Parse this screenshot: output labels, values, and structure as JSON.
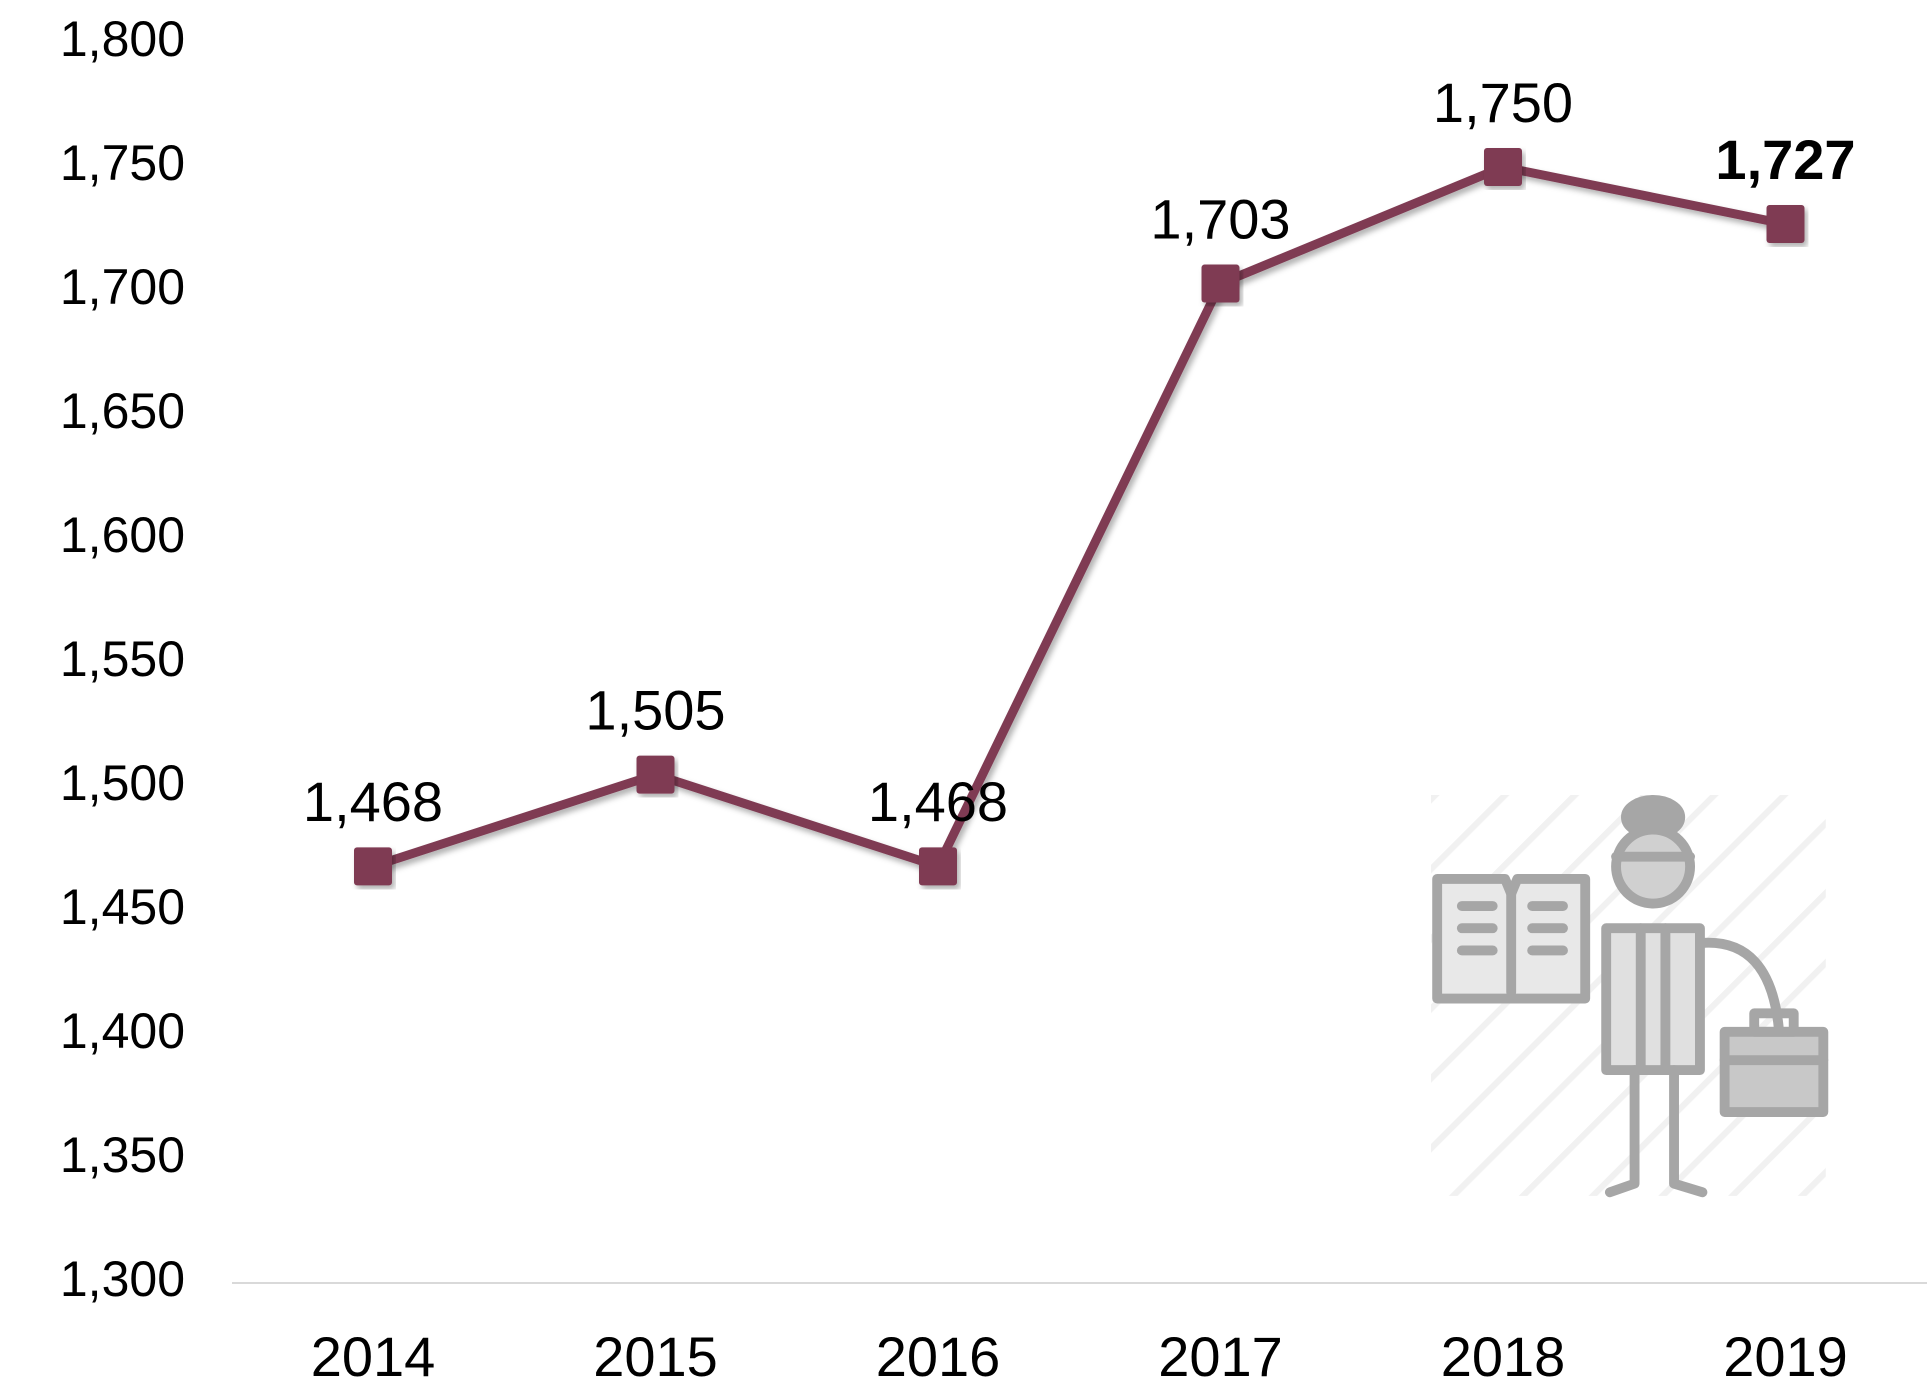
{
  "chart_data": {
    "type": "line",
    "categories": [
      "2014",
      "2015",
      "2016",
      "2017",
      "2018",
      "2019"
    ],
    "series": [
      {
        "color": "#7f3b53",
        "values": [
          1468,
          1505,
          1468,
          1703,
          1750,
          1727
        ],
        "value_labels": [
          "1,468",
          "1,505",
          "1,468",
          "1,703",
          "1,750",
          "1,727"
        ]
      }
    ],
    "ylim": [
      1300,
      1800
    ],
    "yticks": [
      {
        "value": 1300,
        "label": "1,300"
      },
      {
        "value": 1350,
        "label": "1,350"
      },
      {
        "value": 1400,
        "label": "1,400"
      },
      {
        "value": 1450,
        "label": "1,450"
      },
      {
        "value": 1500,
        "label": "1,500"
      },
      {
        "value": 1550,
        "label": "1,550"
      },
      {
        "value": 1600,
        "label": "1,600"
      },
      {
        "value": 1650,
        "label": "1,650"
      },
      {
        "value": 1700,
        "label": "1,700"
      },
      {
        "value": 1750,
        "label": "1,750"
      },
      {
        "value": 1800,
        "label": "1,800"
      }
    ]
  }
}
